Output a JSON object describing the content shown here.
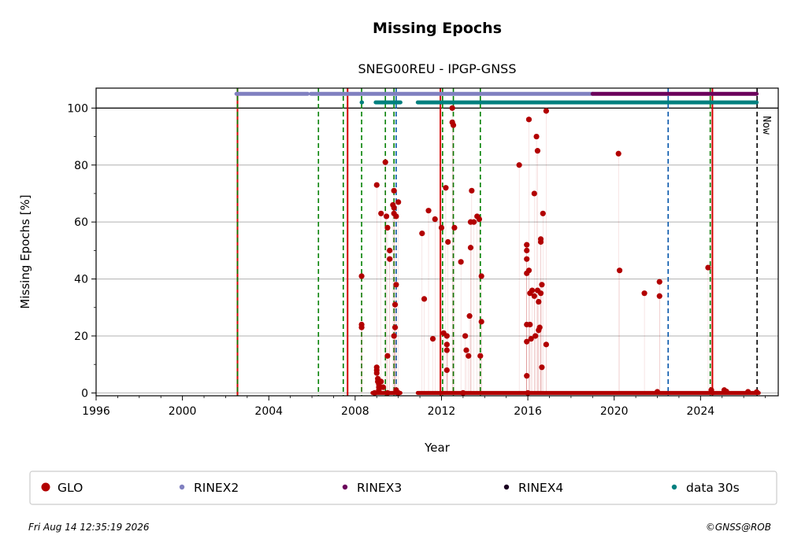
{
  "chart_data": {
    "type": "scatter",
    "title": "Missing Epochs",
    "subtitle": "SNEG00REU - IPGP-GNSS",
    "xlabel": "Year",
    "ylabel": "Missing Epochs [%]",
    "xlim": [
      1996,
      2027.6
    ],
    "ylim": [
      -1,
      107
    ],
    "x_ticks": [
      1996,
      2000,
      2004,
      2008,
      2012,
      2016,
      2020,
      2024
    ],
    "x_tick_labels": [
      "1996",
      "2000",
      "2004",
      "2008",
      "2012",
      "2016",
      "2020",
      "2024"
    ],
    "y_ticks": [
      0,
      20,
      40,
      60,
      80,
      100
    ],
    "y_tick_labels": [
      "0",
      "20",
      "40",
      "60",
      "80",
      "100"
    ],
    "grid": "horizontal",
    "legend_placement": "bottom",
    "now_label": "Now",
    "now_x": 2026.62,
    "reference_line_y": 100,
    "series": [
      {
        "name": "GLO",
        "color": "#b20000",
        "marker": "dot",
        "points": [
          [
            2008.3,
            41
          ],
          [
            2008.3,
            24
          ],
          [
            2008.3,
            23
          ],
          [
            2009.0,
            73
          ],
          [
            2009.0,
            9
          ],
          [
            2009.0,
            8
          ],
          [
            2009.0,
            7
          ],
          [
            2009.05,
            5
          ],
          [
            2009.05,
            4
          ],
          [
            2009.1,
            3
          ],
          [
            2009.1,
            2
          ],
          [
            2009.1,
            1
          ],
          [
            2009.2,
            63
          ],
          [
            2009.2,
            4
          ],
          [
            2009.3,
            2
          ],
          [
            2009.4,
            81
          ],
          [
            2009.45,
            62
          ],
          [
            2009.5,
            58
          ],
          [
            2009.5,
            13
          ],
          [
            2009.6,
            50
          ],
          [
            2009.6,
            47
          ],
          [
            2009.75,
            66
          ],
          [
            2009.8,
            65
          ],
          [
            2009.8,
            63
          ],
          [
            2009.8,
            71
          ],
          [
            2009.8,
            20
          ],
          [
            2009.85,
            31
          ],
          [
            2009.85,
            23
          ],
          [
            2009.9,
            62
          ],
          [
            2009.9,
            38
          ],
          [
            2010.0,
            67
          ],
          [
            2009.9,
            1
          ],
          [
            2011.1,
            56
          ],
          [
            2011.2,
            33
          ],
          [
            2011.4,
            64
          ],
          [
            2011.6,
            19
          ],
          [
            2011.7,
            61
          ],
          [
            2012.0,
            58
          ],
          [
            2012.1,
            21
          ],
          [
            2012.2,
            72
          ],
          [
            2012.25,
            20
          ],
          [
            2012.25,
            17
          ],
          [
            2012.25,
            15
          ],
          [
            2012.25,
            8
          ],
          [
            2012.3,
            53
          ],
          [
            2012.5,
            100
          ],
          [
            2012.5,
            95
          ],
          [
            2012.55,
            94
          ],
          [
            2012.6,
            58
          ],
          [
            2012.9,
            46
          ],
          [
            2013.1,
            20
          ],
          [
            2013.15,
            15
          ],
          [
            2013.25,
            13
          ],
          [
            2013.3,
            27
          ],
          [
            2013.35,
            51
          ],
          [
            2013.35,
            60
          ],
          [
            2013.4,
            71
          ],
          [
            2013.5,
            60
          ],
          [
            2013.65,
            62
          ],
          [
            2013.75,
            61
          ],
          [
            2013.8,
            13
          ],
          [
            2013.85,
            25
          ],
          [
            2013.85,
            41
          ],
          [
            2015.6,
            80
          ],
          [
            2015.95,
            52
          ],
          [
            2015.95,
            50
          ],
          [
            2015.95,
            47
          ],
          [
            2015.95,
            42
          ],
          [
            2015.95,
            24
          ],
          [
            2015.95,
            18
          ],
          [
            2015.95,
            6
          ],
          [
            2016.05,
            96
          ],
          [
            2016.05,
            43
          ],
          [
            2016.1,
            35
          ],
          [
            2016.1,
            24
          ],
          [
            2016.15,
            19
          ],
          [
            2016.2,
            36
          ],
          [
            2016.3,
            70
          ],
          [
            2016.3,
            34
          ],
          [
            2016.35,
            20
          ],
          [
            2016.4,
            90
          ],
          [
            2016.45,
            85
          ],
          [
            2016.45,
            36
          ],
          [
            2016.5,
            32
          ],
          [
            2016.5,
            22
          ],
          [
            2016.55,
            23
          ],
          [
            2016.6,
            54
          ],
          [
            2016.6,
            53
          ],
          [
            2016.6,
            35
          ],
          [
            2016.65,
            38
          ],
          [
            2016.65,
            9
          ],
          [
            2016.7,
            63
          ],
          [
            2016.85,
            99
          ],
          [
            2016.85,
            17
          ],
          [
            2020.2,
            84
          ],
          [
            2020.25,
            43
          ],
          [
            2021.4,
            35
          ],
          [
            2022.1,
            39
          ],
          [
            2022.1,
            34
          ],
          [
            2024.35,
            44
          ],
          [
            2008.9,
            0
          ],
          [
            2009.5,
            0
          ],
          [
            2010.0,
            0
          ],
          [
            2013.0,
            0
          ],
          [
            2016.0,
            0
          ],
          [
            2022.0,
            0.4
          ],
          [
            2024.5,
            1
          ],
          [
            2025.1,
            1
          ],
          [
            2025.2,
            0.5
          ],
          [
            2026.2,
            0.4
          ],
          [
            2026.6,
            0.3
          ]
        ],
        "segments_at_zero": [
          [
            2008.8,
            2010.1
          ],
          [
            2010.9,
            2024.6
          ],
          [
            2024.6,
            2026.7
          ]
        ]
      },
      {
        "name": "RINEX2",
        "color": "#8080c0",
        "marker": "dot",
        "band_y": 105,
        "segments": [
          [
            2002.5,
            2005.8
          ],
          [
            2005.95,
            2019.0
          ]
        ]
      },
      {
        "name": "RINEX3",
        "color": "#6b005b",
        "marker": "dot",
        "band_y": 105,
        "segments": [
          [
            2019.0,
            2026.6
          ]
        ]
      },
      {
        "name": "RINEX4",
        "color": "#1a0020",
        "marker": "dot",
        "band_y": 105,
        "segments": []
      },
      {
        "name": "data 30s",
        "color": "#00807f",
        "marker": "dot",
        "band_y": 102,
        "segments": [
          [
            2008.3,
            2008.32
          ],
          [
            2008.95,
            2010.1
          ],
          [
            2010.9,
            2026.6
          ]
        ]
      }
    ],
    "vertical_lines": [
      {
        "x": 2002.55,
        "color": "#d40000",
        "style": "solid"
      },
      {
        "x": 2002.55,
        "color": "#008000",
        "style": "dashed"
      },
      {
        "x": 2006.3,
        "color": "#008000",
        "style": "dashed"
      },
      {
        "x": 2007.45,
        "color": "#008000",
        "style": "dashed"
      },
      {
        "x": 2007.65,
        "color": "#d40000",
        "style": "solid"
      },
      {
        "x": 2008.3,
        "color": "#008000",
        "style": "dashed"
      },
      {
        "x": 2009.4,
        "color": "#008000",
        "style": "dashed"
      },
      {
        "x": 2009.8,
        "color": "#008000",
        "style": "dashed"
      },
      {
        "x": 2009.9,
        "color": "#0055aa",
        "style": "dashed"
      },
      {
        "x": 2011.95,
        "color": "#d40000",
        "style": "solid"
      },
      {
        "x": 2012.05,
        "color": "#008000",
        "style": "dashed"
      },
      {
        "x": 2012.55,
        "color": "#008000",
        "style": "dashed"
      },
      {
        "x": 2013.8,
        "color": "#008000",
        "style": "dashed"
      },
      {
        "x": 2022.5,
        "color": "#0055aa",
        "style": "dashed"
      },
      {
        "x": 2024.45,
        "color": "#008000",
        "style": "dashed"
      },
      {
        "x": 2024.55,
        "color": "#d40000",
        "style": "solid"
      },
      {
        "x": 2026.62,
        "color": "#000000",
        "style": "dashed"
      }
    ]
  },
  "legend": [
    {
      "label": "GLO",
      "color": "#b20000"
    },
    {
      "label": "RINEX2",
      "color": "#8080c0"
    },
    {
      "label": "RINEX3",
      "color": "#6b005b"
    },
    {
      "label": "RINEX4",
      "color": "#1a0020"
    },
    {
      "label": "data 30s",
      "color": "#00807f"
    }
  ],
  "footer": {
    "timestamp": "Fri Aug 14 12:35:19 2026",
    "credit": "©GNSS@ROB"
  }
}
